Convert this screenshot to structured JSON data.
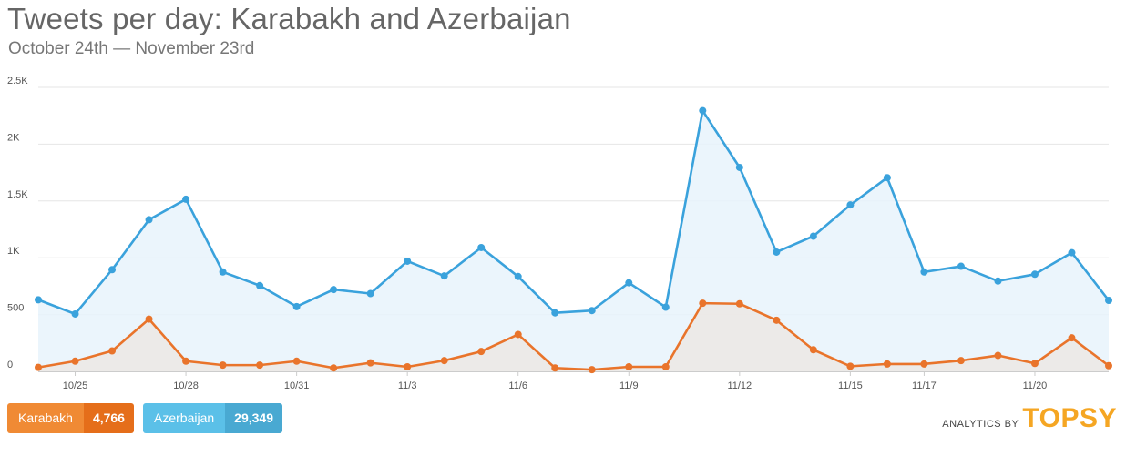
{
  "header": {
    "title": "Tweets per day: Karabakh and Azerbaijan",
    "subtitle": "October 24th — November 23rd"
  },
  "legend": [
    {
      "name": "Karabakh",
      "total": "4,766"
    },
    {
      "name": "Azerbaijan",
      "total": "29,349"
    }
  ],
  "branding": {
    "prefix": "ANALYTICS BY",
    "logo": "TOPSY"
  },
  "colors": {
    "karabakh": "#e9742b",
    "azerbaijan": "#3aa2dc",
    "azerbaijan_fill": "#e8f3fb",
    "karabakh_fill": "#ece7e4",
    "grid": "#e6e6e6"
  },
  "chart_data": {
    "type": "area",
    "title": "Tweets per day: Karabakh and Azerbaijan",
    "subtitle": "October 24th — November 23rd",
    "xlabel": "",
    "ylabel": "",
    "ylim": [
      0,
      2500
    ],
    "yticks": [
      {
        "value": 0,
        "label": "0"
      },
      {
        "value": 500,
        "label": "500"
      },
      {
        "value": 1000,
        "label": "1K"
      },
      {
        "value": 1500,
        "label": "1.5K"
      },
      {
        "value": 2000,
        "label": "2K"
      },
      {
        "value": 2500,
        "label": "2.5K"
      }
    ],
    "x": [
      "10/24",
      "10/25",
      "10/26",
      "10/27",
      "10/28",
      "10/29",
      "10/30",
      "10/31",
      "11/1",
      "11/2",
      "11/3",
      "11/4",
      "11/5",
      "11/6",
      "11/7",
      "11/8",
      "11/9",
      "11/10",
      "11/11",
      "11/12",
      "11/13",
      "11/14",
      "11/15",
      "11/16",
      "11/17",
      "11/18",
      "11/19",
      "11/20",
      "11/21",
      "11/22"
    ],
    "xtick_labels": [
      "10/25",
      "10/28",
      "10/31",
      "11/3",
      "11/6",
      "11/9",
      "11/12",
      "11/15",
      "11/17",
      "11/20"
    ],
    "grid": true,
    "legend_position": "bottom-left",
    "series": [
      {
        "name": "Azerbaijan",
        "values": [
          630,
          505,
          895,
          1335,
          1515,
          875,
          755,
          570,
          720,
          685,
          970,
          840,
          1090,
          835,
          515,
          535,
          780,
          565,
          2295,
          1795,
          1050,
          1190,
          1465,
          1705,
          875,
          925,
          795,
          855,
          1045,
          625
        ]
      },
      {
        "name": "Karabakh",
        "values": [
          35,
          90,
          180,
          460,
          90,
          55,
          55,
          90,
          30,
          75,
          40,
          95,
          175,
          325,
          30,
          15,
          40,
          40,
          600,
          595,
          450,
          190,
          45,
          65,
          65,
          95,
          140,
          70,
          295,
          50
        ]
      }
    ]
  }
}
